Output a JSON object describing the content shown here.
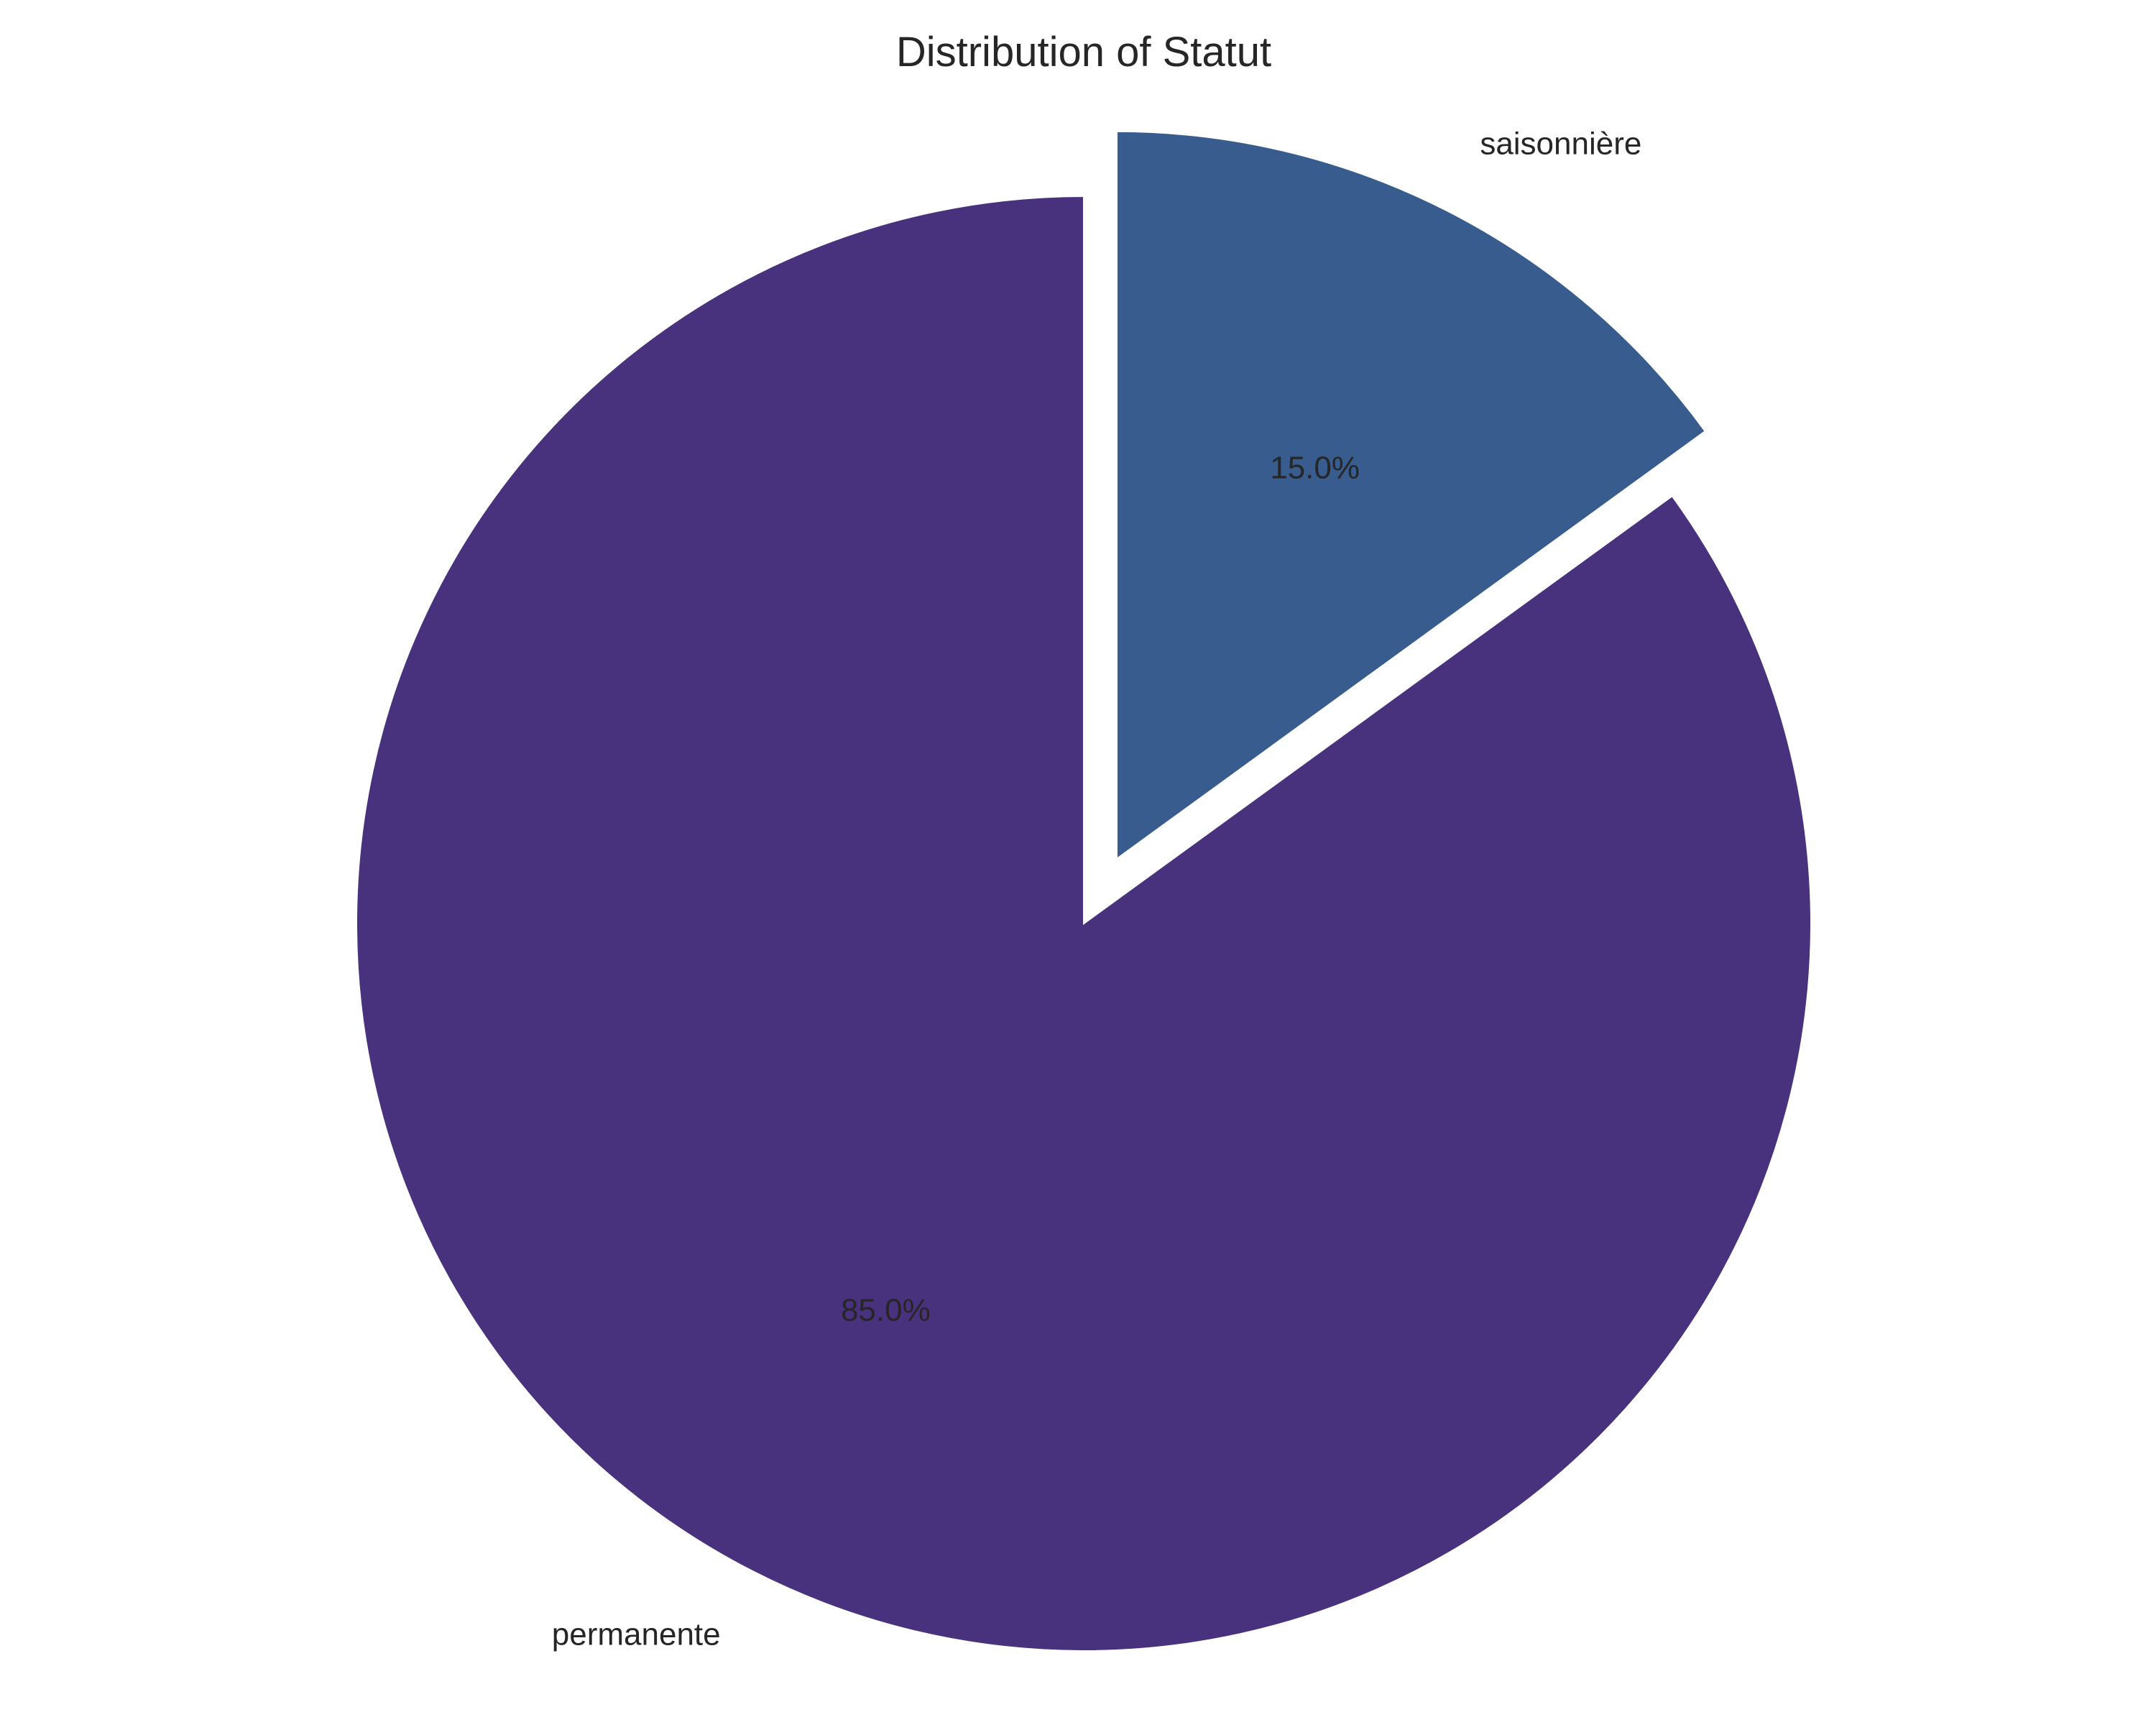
{
  "chart_data": {
    "type": "pie",
    "title": "Distribution of Statut",
    "slices": [
      {
        "label": "permanente",
        "value": 85.0,
        "pct_label": "85.0%",
        "color": "#48327d",
        "exploded": false
      },
      {
        "label": "saisonnière",
        "value": 15.0,
        "pct_label": "15.0%",
        "color": "#385c8e",
        "exploded": true
      }
    ],
    "start_angle_deg": 90,
    "direction": "counterclockwise",
    "legend": "none"
  }
}
